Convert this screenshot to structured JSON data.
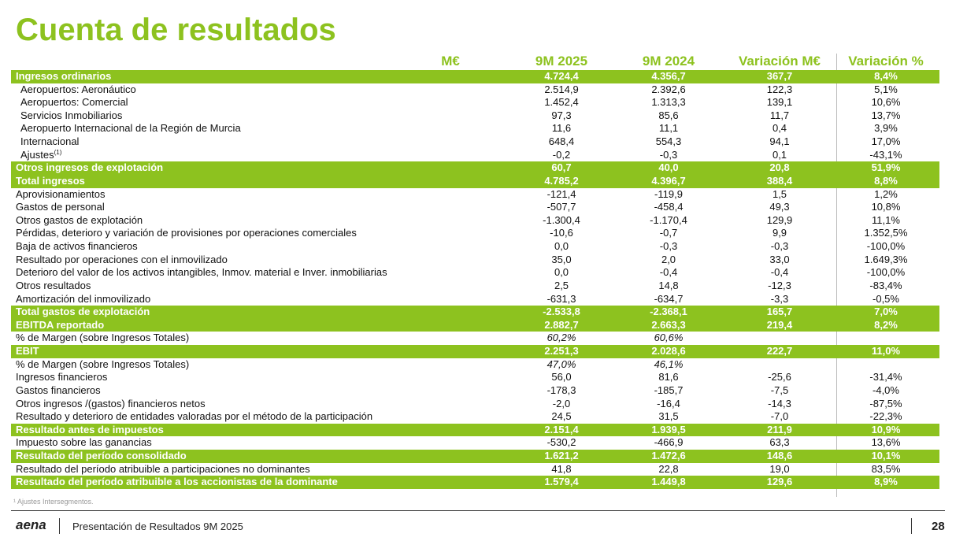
{
  "header": {
    "title": "Cuenta de resultados"
  },
  "table": {
    "columns": [
      "M€",
      "9M 2025",
      "9M 2024",
      "Variación M€",
      "Variación %"
    ],
    "rows": [
      {
        "label": "Ingresos ordinarios",
        "style": "total",
        "cells": [
          "4.724,4",
          "4.356,7",
          "367,7",
          "8,4%"
        ]
      },
      {
        "label": "Aeropuertos: Aeronáutico",
        "style": "sub",
        "cells": [
          "2.514,9",
          "2.392,6",
          "122,3",
          "5,1%"
        ]
      },
      {
        "label": "Aeropuertos: Comercial",
        "style": "sub",
        "cells": [
          "1.452,4",
          "1.313,3",
          "139,1",
          "10,6%"
        ]
      },
      {
        "label": "Servicios Inmobiliarios",
        "style": "sub",
        "cells": [
          "97,3",
          "85,6",
          "11,7",
          "13,7%"
        ]
      },
      {
        "label": "Aeropuerto Internacional de la Región de Murcia",
        "style": "sub",
        "cells": [
          "11,6",
          "11,1",
          "0,4",
          "3,9%"
        ]
      },
      {
        "label": "Internacional",
        "style": "sub",
        "cells": [
          "648,4",
          "554,3",
          "94,1",
          "17,0%"
        ]
      },
      {
        "label": "Ajustes",
        "sup": "(1)",
        "style": "sub",
        "cells": [
          "-0,2",
          "-0,3",
          "0,1",
          "-43,1%"
        ]
      },
      {
        "label": "Otros ingresos de explotación",
        "style": "total",
        "cells": [
          "60,7",
          "40,0",
          "20,8",
          "51,9%"
        ]
      },
      {
        "label": "Total ingresos",
        "style": "total",
        "cells": [
          "4.785,2",
          "4.396,7",
          "388,4",
          "8,8%"
        ]
      },
      {
        "label": "Aprovisionamientos",
        "style": "item",
        "cells": [
          "-121,4",
          "-119,9",
          "1,5",
          "1,2%"
        ]
      },
      {
        "label": "Gastos de personal",
        "style": "item",
        "cells": [
          "-507,7",
          "-458,4",
          "49,3",
          "10,8%"
        ]
      },
      {
        "label": "Otros gastos de explotación",
        "style": "item",
        "cells": [
          "-1.300,4",
          "-1.170,4",
          "129,9",
          "11,1%"
        ]
      },
      {
        "label": "Pérdidas, deterioro y variación de provisiones por operaciones comerciales",
        "style": "item",
        "cells": [
          "-10,6",
          "-0,7",
          "9,9",
          "1.352,5%"
        ]
      },
      {
        "label": "Baja de activos financieros",
        "style": "item",
        "cells": [
          "0,0",
          "-0,3",
          "-0,3",
          "-100,0%"
        ]
      },
      {
        "label": "Resultado por operaciones con el inmovilizado",
        "style": "item",
        "cells": [
          "35,0",
          "2,0",
          "33,0",
          "1.649,3%"
        ]
      },
      {
        "label": "Deterioro del valor de los activos intangibles, Inmov. material e Inver. inmobiliarias",
        "style": "item",
        "cells": [
          "0,0",
          "-0,4",
          "-0,4",
          "-100,0%"
        ]
      },
      {
        "label": "Otros resultados",
        "style": "item",
        "cells": [
          "2,5",
          "14,8",
          "-12,3",
          "-83,4%"
        ]
      },
      {
        "label": "Amortización del inmovilizado",
        "style": "item",
        "cells": [
          "-631,3",
          "-634,7",
          "-3,3",
          "-0,5%"
        ]
      },
      {
        "label": "Total gastos de explotación",
        "style": "total",
        "cells": [
          "-2.533,8",
          "-2.368,1",
          "165,7",
          "7,0%"
        ]
      },
      {
        "label": "EBITDA reportado",
        "style": "total",
        "cells": [
          "2.882,7",
          "2.663,3",
          "219,4",
          "8,2%"
        ]
      },
      {
        "label": "% de Margen (sobre Ingresos Totales)",
        "style": "margin",
        "cells": [
          "60,2%",
          "60,6%"
        ]
      },
      {
        "label": "EBIT",
        "style": "total",
        "cells": [
          "2.251,3",
          "2.028,6",
          "222,7",
          "11,0%"
        ]
      },
      {
        "label": "% de Margen (sobre Ingresos Totales)",
        "style": "margin",
        "cells": [
          "47,0%",
          "46,1%"
        ]
      },
      {
        "label": "Ingresos financieros",
        "style": "item",
        "cells": [
          "56,0",
          "81,6",
          "-25,6",
          "-31,4%"
        ]
      },
      {
        "label": "Gastos financieros",
        "style": "item",
        "cells": [
          "-178,3",
          "-185,7",
          "-7,5",
          "-4,0%"
        ]
      },
      {
        "label": "Otros ingresos /(gastos) financieros netos",
        "style": "item",
        "cells": [
          "-2,0",
          "-16,4",
          "-14,3",
          "-87,5%"
        ]
      },
      {
        "label": "Resultado y deterioro de entidades valoradas por el método de la participación",
        "style": "item",
        "cells": [
          "24,5",
          "31,5",
          "-7,0",
          "-22,3%"
        ]
      },
      {
        "label": "Resultado antes de impuestos",
        "style": "total",
        "cells": [
          "2.151,4",
          "1.939,5",
          "211,9",
          "10,9%"
        ]
      },
      {
        "label": "Impuesto sobre las ganancias",
        "style": "item",
        "cells": [
          "-530,2",
          "-466,9",
          "63,3",
          "13,6%"
        ]
      },
      {
        "label": "Resultado del período consolidado",
        "style": "total",
        "cells": [
          "1.621,2",
          "1.472,6",
          "148,6",
          "10,1%"
        ]
      },
      {
        "label": "Resultado del período atribuible a participaciones no dominantes",
        "style": "item",
        "cells": [
          "41,8",
          "22,8",
          "19,0",
          "83,5%"
        ]
      },
      {
        "label": "Resultado del período atribuible a los accionistas de la dominante",
        "style": "total",
        "cells": [
          "1.579,4",
          "1.449,8",
          "129,6",
          "8,9%"
        ]
      }
    ]
  },
  "footnote": "¹ Ajustes Intersegmentos.",
  "footer": {
    "logo": "aena",
    "text": "Presentación de Resultados 9M 2025",
    "page": "28"
  }
}
